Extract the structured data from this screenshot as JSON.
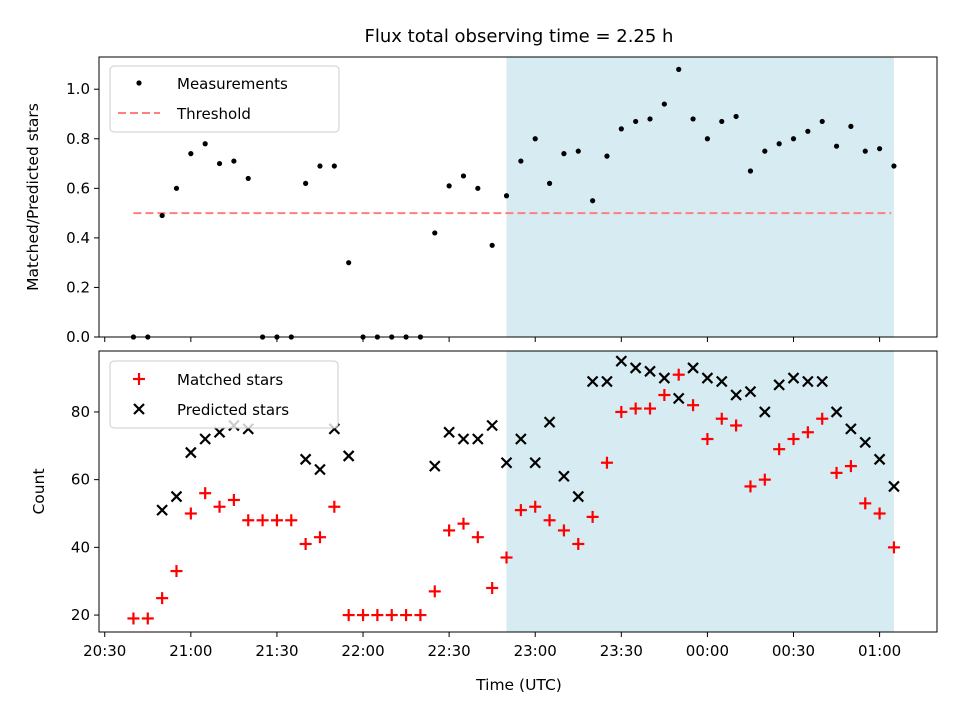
{
  "title": "Flux total observing time = 2.25 h",
  "colors": {
    "measurements": "#000000",
    "threshold": "#ff7f7f",
    "matched": "#ff0000",
    "predicted": "#000000",
    "shade": "#add8e6"
  },
  "chart_data": [
    {
      "type": "scatter",
      "ylabel": "Matched/Predicted stars",
      "ylim": [
        0,
        1.13
      ],
      "yticks": [
        0.0,
        0.2,
        0.4,
        0.6,
        0.8,
        1.0
      ],
      "ytick_labels": [
        "0.0",
        "0.2",
        "0.4",
        "0.6",
        "0.8",
        "1.0"
      ],
      "legend": [
        "Measurements",
        "Threshold"
      ],
      "legend_position": "top-left",
      "shaded_span": [
        "22:50",
        "01:05"
      ],
      "threshold": {
        "value": 0.5,
        "x_range": [
          "20:40",
          "01:04"
        ]
      },
      "series": [
        {
          "name": "Measurements",
          "x": [
            "20:40",
            "20:45",
            "20:50",
            "20:55",
            "21:00",
            "21:05",
            "21:10",
            "21:15",
            "21:20",
            "21:25",
            "21:30",
            "21:35",
            "21:40",
            "21:45",
            "21:50",
            "21:55",
            "22:00",
            "22:05",
            "22:10",
            "22:15",
            "22:20",
            "22:25",
            "22:30",
            "22:35",
            "22:40",
            "22:45",
            "22:50",
            "22:55",
            "23:00",
            "23:05",
            "23:10",
            "23:15",
            "23:20",
            "23:25",
            "23:30",
            "23:35",
            "23:40",
            "23:45",
            "23:50",
            "23:55",
            "00:00",
            "00:05",
            "00:10",
            "00:15",
            "00:20",
            "00:25",
            "00:30",
            "00:35",
            "00:40",
            "00:45",
            "00:50",
            "00:55",
            "01:00",
            "01:05"
          ],
          "values": [
            0.0,
            0.0,
            0.49,
            0.6,
            0.74,
            0.78,
            0.7,
            0.71,
            0.64,
            0.0,
            0.0,
            0.0,
            0.62,
            0.69,
            0.69,
            0.3,
            0.0,
            0.0,
            0.0,
            0.0,
            0.0,
            0.42,
            0.61,
            0.65,
            0.6,
            0.37,
            0.57,
            0.71,
            0.8,
            0.62,
            0.74,
            0.75,
            0.55,
            0.73,
            0.84,
            0.87,
            0.88,
            0.94,
            1.08,
            0.88,
            0.8,
            0.87,
            0.89,
            0.67,
            0.75,
            0.78,
            0.8,
            0.83,
            0.87,
            0.77,
            0.85,
            0.75,
            0.76,
            0.69
          ]
        }
      ]
    },
    {
      "type": "scatter",
      "ylabel": "Count",
      "xlabel": "Time (UTC)",
      "ylim": [
        15,
        98
      ],
      "yticks": [
        20,
        40,
        60,
        80
      ],
      "ytick_labels": [
        "20",
        "40",
        "60",
        "80"
      ],
      "xticks": [
        "20:30",
        "21:00",
        "21:30",
        "22:00",
        "22:30",
        "23:00",
        "23:30",
        "00:00",
        "00:30",
        "01:00"
      ],
      "legend": [
        "Matched stars",
        "Predicted stars"
      ],
      "legend_position": "top-left",
      "shaded_span": [
        "22:50",
        "01:05"
      ],
      "series": [
        {
          "name": "Matched stars",
          "marker": "+",
          "x": [
            "20:40",
            "20:45",
            "20:50",
            "20:55",
            "21:00",
            "21:05",
            "21:10",
            "21:15",
            "21:20",
            "21:25",
            "21:30",
            "21:35",
            "21:40",
            "21:45",
            "21:50",
            "21:55",
            "22:00",
            "22:05",
            "22:10",
            "22:15",
            "22:20",
            "22:25",
            "22:30",
            "22:35",
            "22:40",
            "22:45",
            "22:50",
            "22:55",
            "23:00",
            "23:05",
            "23:10",
            "23:15",
            "23:20",
            "23:25",
            "23:30",
            "23:35",
            "23:40",
            "23:45",
            "23:50",
            "23:55",
            "00:00",
            "00:05",
            "00:10",
            "00:15",
            "00:20",
            "00:25",
            "00:30",
            "00:35",
            "00:40",
            "00:45",
            "00:50",
            "00:55",
            "01:00",
            "01:05"
          ],
          "values": [
            19,
            19,
            25,
            33,
            50,
            56,
            52,
            54,
            48,
            48,
            48,
            48,
            41,
            43,
            52,
            20,
            20,
            20,
            20,
            20,
            20,
            27,
            45,
            47,
            43,
            28,
            37,
            51,
            52,
            48,
            45,
            41,
            49,
            65,
            80,
            81,
            81,
            85,
            91,
            82,
            72,
            78,
            76,
            58,
            60,
            69,
            72,
            74,
            78,
            62,
            64,
            53,
            50,
            40
          ]
        },
        {
          "name": "Predicted stars",
          "marker": "x",
          "x": [
            "20:50",
            "20:55",
            "21:00",
            "21:05",
            "21:10",
            "21:15",
            "21:20",
            "21:40",
            "21:45",
            "21:50",
            "21:55",
            "22:25",
            "22:30",
            "22:35",
            "22:40",
            "22:45",
            "22:50",
            "22:55",
            "23:00",
            "23:05",
            "23:10",
            "23:15",
            "23:20",
            "23:25",
            "23:30",
            "23:35",
            "23:40",
            "23:45",
            "23:50",
            "23:55",
            "00:00",
            "00:05",
            "00:10",
            "00:15",
            "00:20",
            "00:25",
            "00:30",
            "00:35",
            "00:40",
            "00:45",
            "00:50",
            "00:55",
            "01:00",
            "01:05"
          ],
          "values": [
            51,
            55,
            68,
            72,
            74,
            76,
            75,
            66,
            63,
            75,
            67,
            64,
            74,
            72,
            72,
            76,
            65,
            72,
            65,
            77,
            61,
            55,
            89,
            89,
            95,
            93,
            92,
            90,
            84,
            93,
            90,
            89,
            85,
            86,
            80,
            88,
            90,
            89,
            89,
            80,
            75,
            71,
            66,
            58
          ]
        }
      ]
    }
  ]
}
